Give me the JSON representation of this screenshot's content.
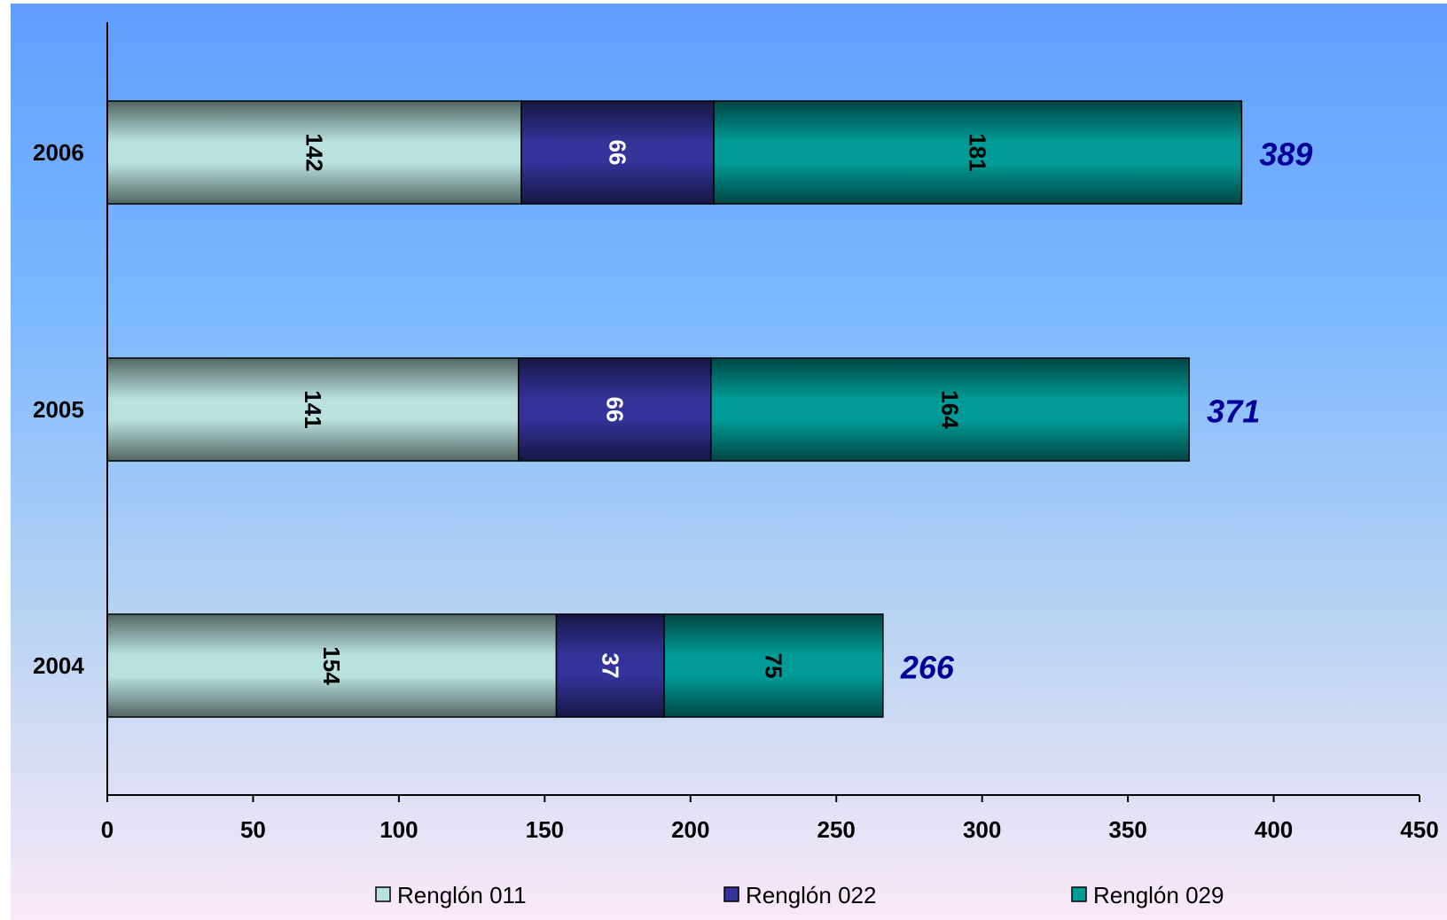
{
  "chart_data": {
    "type": "bar",
    "orientation": "horizontal",
    "stacked": true,
    "categories": [
      "2004",
      "2005",
      "2006"
    ],
    "series": [
      {
        "name": "Renglón 011",
        "values": [
          154,
          141,
          142
        ],
        "color": "#b9e2df",
        "label_color": "#000000"
      },
      {
        "name": "Renglón 022",
        "values": [
          37,
          66,
          66
        ],
        "color": "#33339a",
        "label_color": "#ffffff"
      },
      {
        "name": "Renglón 029",
        "values": [
          75,
          164,
          181
        ],
        "color": "#009b96",
        "label_color": "#000000"
      }
    ],
    "totals": [
      266,
      371,
      389
    ],
    "total_color": "#000099",
    "xlim": [
      0,
      450
    ],
    "xticks": [
      0,
      50,
      100,
      150,
      200,
      250,
      300,
      350,
      400,
      450
    ],
    "legend_position": "bottom",
    "background_gradient": [
      "#5f9efe",
      "#7db8fe",
      "#b8d3f2",
      "#fae9f7"
    ],
    "grid": false
  }
}
